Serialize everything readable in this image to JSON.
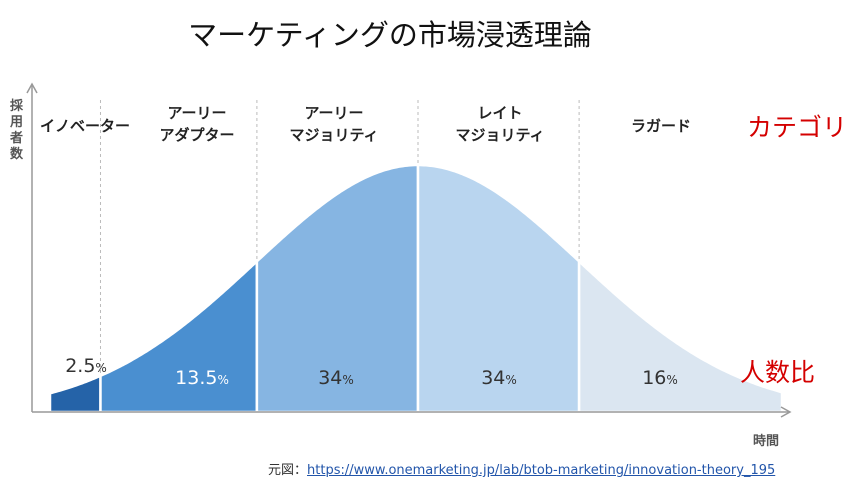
{
  "title": "マーケティングの市場浸透理論",
  "chart_data": {
    "type": "area",
    "curve": "normal-distribution",
    "ylabel": "採用者数",
    "xlabel": "時間",
    "segments": [
      {
        "name": "イノベーター",
        "lines": [
          "イノベーター"
        ],
        "value": 2.5,
        "label": "2.5",
        "color": "#2563a8"
      },
      {
        "name": "アーリーアダプター",
        "lines": [
          "アーリー",
          "アダプター"
        ],
        "value": 13.5,
        "label": "13.5",
        "color": "#4a8fd0"
      },
      {
        "name": "アーリーマジョリティ",
        "lines": [
          "アーリー",
          "マジョリティ"
        ],
        "value": 34,
        "label": "34",
        "color": "#86b5e2"
      },
      {
        "name": "レイトマジョリティ",
        "lines": [
          "レイト",
          "マジョリティ"
        ],
        "value": 34,
        "label": "34",
        "color": "#b9d5ef"
      },
      {
        "name": "ラガード",
        "lines": [
          "ラガード"
        ],
        "value": 16,
        "label": "16",
        "color": "#dbe6f1"
      }
    ],
    "unit": "%",
    "annotations": {
      "category": "カテゴリ",
      "ratio": "人数比"
    }
  },
  "source": {
    "label": "元図：",
    "url": "https://www.onemarketing.jp/lab/btob-marketing/innovation-theory_195"
  }
}
